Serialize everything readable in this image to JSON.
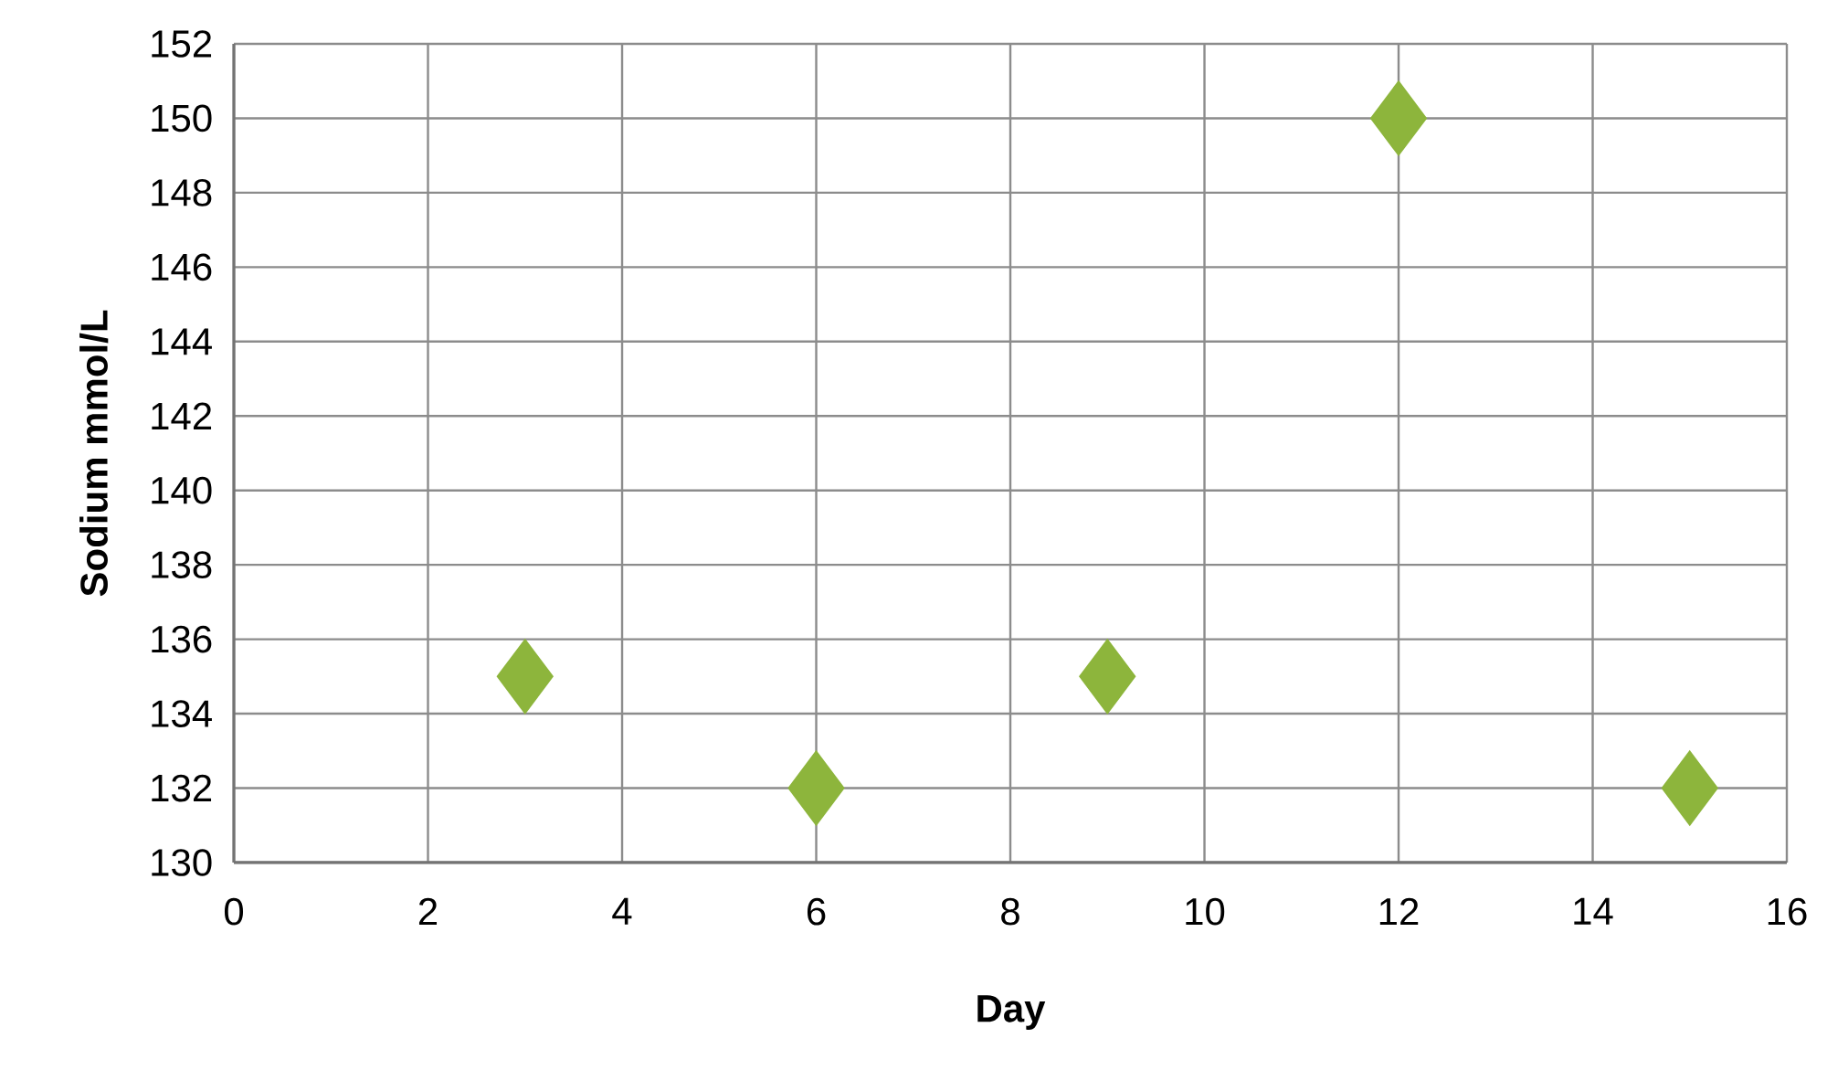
{
  "chart_data": {
    "type": "scatter",
    "xlabel": "Day",
    "ylabel": "Sodium mmol/L",
    "x": [
      3,
      6,
      9,
      12,
      15
    ],
    "values": [
      135,
      132,
      135,
      150,
      132
    ],
    "color": "#8db53c",
    "marker": "diamond",
    "grid": true,
    "xlim": [
      0,
      16
    ],
    "xticks": [
      0,
      2,
      4,
      6,
      8,
      10,
      12,
      14,
      16
    ],
    "ylim": [
      130,
      152
    ],
    "yticks": [
      130,
      132,
      134,
      136,
      138,
      140,
      142,
      144,
      146,
      148,
      150,
      152
    ]
  }
}
